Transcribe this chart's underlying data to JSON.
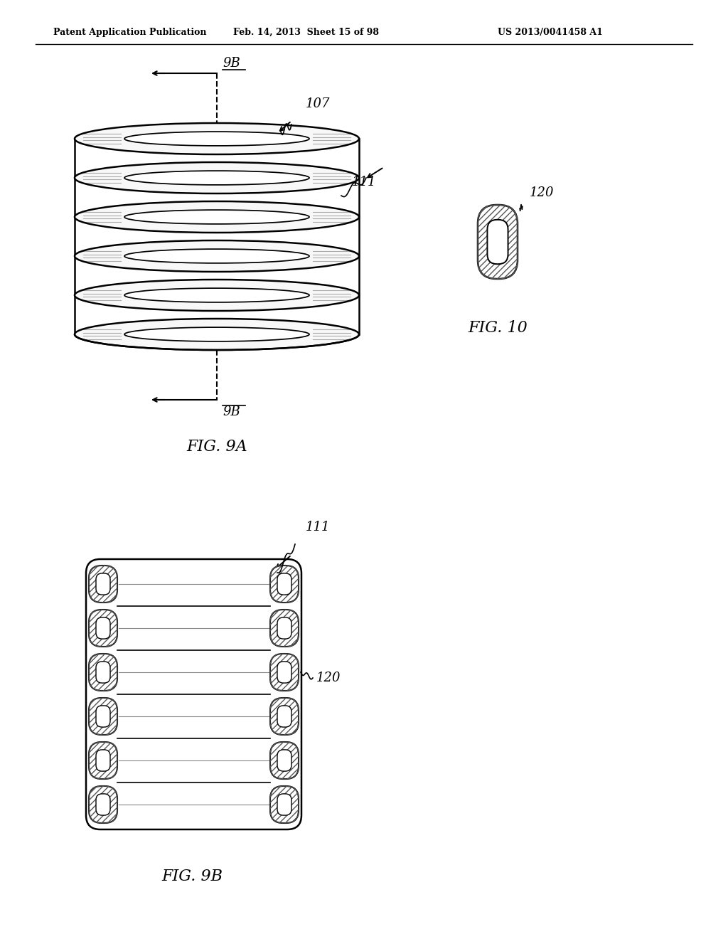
{
  "header_left": "Patent Application Publication",
  "header_mid": "Feb. 14, 2013  Sheet 15 of 98",
  "header_right": "US 2013/0041458 A1",
  "fig9a_label": "FIG. 9A",
  "fig9b_label": "FIG. 9B",
  "fig10_label": "FIG. 10",
  "label_9B": "9B",
  "label_107": "107",
  "label_111_9a": "111",
  "label_120_fig10": "120",
  "label_111_fig9b": "111",
  "label_120_fig9b": "120",
  "bg_color": "#ffffff",
  "line_color": "#000000"
}
